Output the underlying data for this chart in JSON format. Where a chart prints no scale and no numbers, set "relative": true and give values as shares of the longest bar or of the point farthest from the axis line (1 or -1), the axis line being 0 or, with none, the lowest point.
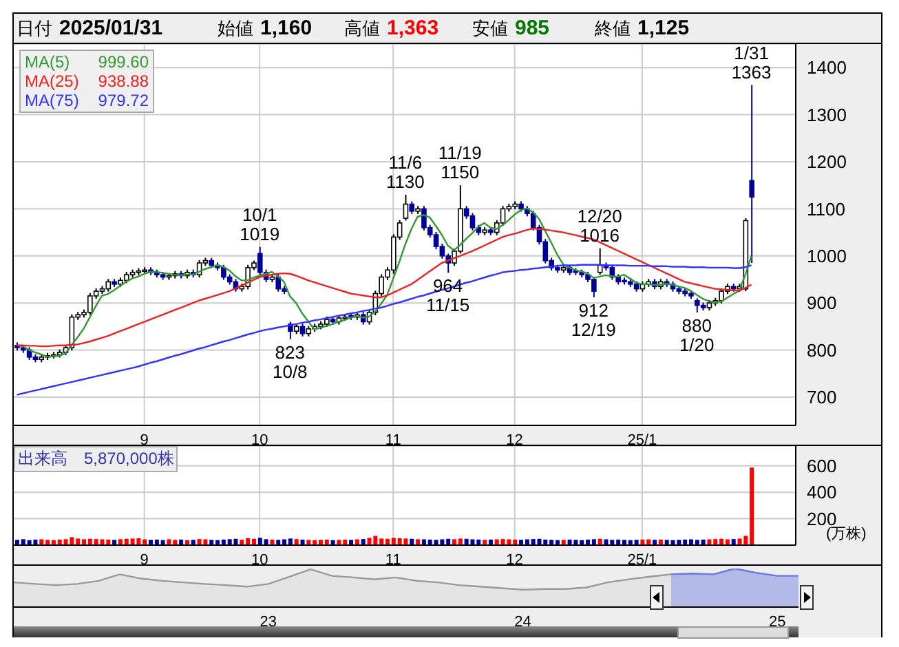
{
  "chart_data": [
    {
      "type": "candlestick",
      "colors": [
        "#000099",
        "#000099",
        "#000099",
        "#000099",
        "#ffffff",
        "#ffffff",
        "#ffffff",
        "#ffffff",
        "#ffffff",
        "#ffffff",
        "#ffffff",
        "#ffffff",
        "#ffffff",
        "#ffffff",
        "#ffffff",
        "#ffffff",
        "#000099",
        "#ffffff",
        "#ffffff",
        "#ffffff",
        "#ffffff",
        "#ffffff",
        "#000099",
        "#000099",
        "#000099",
        "#ffffff",
        "#ffffff",
        "#000099",
        "#ffffff",
        "#000099",
        "#ffffff",
        "#ffffff",
        "#000099",
        "#000099",
        "#000099",
        "#000099",
        "#000099",
        "#ffffff",
        "#ffffff",
        "#ffffff",
        "#000099",
        "#000099",
        "#ffffff",
        "#000099",
        "#000099",
        "#000099",
        "#ffffff",
        "#000099",
        "#ffffff",
        "#ffffff",
        "#ffffff",
        "#ffffff",
        "#000099",
        "#ffffff",
        "#ffffff",
        "#000099",
        "#ffffff",
        "#000099",
        "#ffffff",
        "#ffffff",
        "#ffffff",
        "#ffffff",
        "#ffffff",
        "#ffffff",
        "#ffffff",
        "#000099",
        "#ffffff",
        "#000099",
        "#000099",
        "#000099",
        "#000099",
        "#000099",
        "#ffffff",
        "#ffffff",
        "#000099",
        "#000099",
        "#000099",
        "#ffffff",
        "#000099",
        "#ffffff",
        "#ffffff",
        "#ffffff",
        "#ffffff",
        "#000099",
        "#000099",
        "#000099",
        "#000099",
        "#000099",
        "#000099",
        "#000099",
        "#ffffff",
        "#000099",
        "#000099",
        "#000099",
        "#000099",
        "#000099",
        "#ffffff",
        "#000099",
        "#000099",
        "#000099",
        "#000099",
        "#000099",
        "#000099",
        "#ffffff",
        "#ffffff",
        "#000099",
        "#ffffff",
        "#000099",
        "#000099",
        "#000099",
        "#000099",
        "#000099",
        "#000099",
        "#000099",
        "#ffffff",
        "#ffffff",
        "#ffffff",
        "#ffffff",
        "#000099",
        "#ffffff",
        "#ffffff",
        "#000099"
      ],
      "ylim": [
        640,
        1450
      ],
      "yticks": [
        700,
        800,
        900,
        1000,
        1100,
        1200,
        1300,
        1400
      ],
      "grid": true,
      "legend": "top left",
      "categories": [
        null,
        null,
        null,
        null,
        null,
        null,
        null,
        null,
        null,
        null,
        null,
        null,
        null,
        null,
        null,
        null,
        null,
        null,
        null,
        null,
        null,
        "9",
        null,
        null,
        null,
        null,
        null,
        null,
        null,
        null,
        null,
        null,
        null,
        null,
        null,
        null,
        null,
        null,
        null,
        null,
        "10",
        null,
        null,
        null,
        null,
        null,
        null,
        null,
        null,
        null,
        null,
        null,
        null,
        null,
        null,
        null,
        null,
        null,
        null,
        null,
        null,
        null,
        "11",
        null,
        null,
        null,
        null,
        null,
        null,
        null,
        null,
        null,
        null,
        null,
        null,
        null,
        null,
        null,
        null,
        null,
        null,
        null,
        "12",
        null,
        null,
        null,
        null,
        null,
        null,
        null,
        null,
        null,
        null,
        null,
        null,
        null,
        null,
        null,
        null,
        null,
        null,
        null,
        null,
        "25/1",
        null,
        null,
        null,
        null,
        null,
        null,
        null,
        null,
        null,
        null,
        null,
        null,
        null,
        null,
        null,
        null,
        null,
        null
      ],
      "ohlc": [
        [
          810,
          816,
          799,
          805
        ],
        [
          805,
          811,
          794,
          800
        ],
        [
          800,
          806,
          779,
          785
        ],
        [
          785,
          791,
          774,
          780
        ],
        [
          780,
          791,
          774,
          785
        ],
        [
          785,
          794,
          779,
          788
        ],
        [
          788,
          796,
          782,
          790
        ],
        [
          790,
          801,
          784,
          795
        ],
        [
          795,
          811,
          789,
          805
        ],
        [
          805,
          876,
          799,
          870
        ],
        [
          870,
          881,
          864,
          875
        ],
        [
          875,
          886,
          869,
          880
        ],
        [
          880,
          921,
          874,
          915
        ],
        [
          915,
          931,
          909,
          925
        ],
        [
          925,
          936,
          919,
          930
        ],
        [
          930,
          951,
          924,
          945
        ],
        [
          945,
          951,
          934,
          940
        ],
        [
          940,
          954,
          934,
          948
        ],
        [
          948,
          966,
          942,
          960
        ],
        [
          960,
          971,
          954,
          965
        ],
        [
          965,
          974,
          959,
          968
        ],
        [
          968,
          976,
          962,
          970
        ],
        [
          970,
          976,
          959,
          965
        ],
        [
          965,
          971,
          954,
          960
        ],
        [
          960,
          966,
          949,
          955
        ],
        [
          955,
          963,
          949,
          958
        ],
        [
          958,
          968,
          952,
          962
        ],
        [
          962,
          968,
          952,
          958
        ],
        [
          958,
          971,
          952,
          965
        ],
        [
          965,
          971,
          954,
          960
        ],
        [
          960,
          991,
          954,
          985
        ],
        [
          985,
          996,
          979,
          990
        ],
        [
          990,
          996,
          974,
          980
        ],
        [
          980,
          986,
          969,
          975
        ],
        [
          975,
          981,
          949,
          955
        ],
        [
          955,
          961,
          939,
          945
        ],
        [
          945,
          951,
          924,
          930
        ],
        [
          930,
          941,
          924,
          935
        ],
        [
          935,
          981,
          929,
          975
        ],
        [
          975,
          990,
          970,
          985
        ],
        [
          1005,
          1019,
          960,
          965
        ],
        [
          965,
          971,
          944,
          950
        ],
        [
          950,
          961,
          944,
          955
        ],
        [
          955,
          961,
          924,
          930
        ],
        [
          930,
          936,
          919,
          925
        ],
        [
          855,
          860,
          823,
          840
        ],
        [
          840,
          856,
          834,
          850
        ],
        [
          850,
          856,
          829,
          835
        ],
        [
          835,
          851,
          829,
          845
        ],
        [
          845,
          856,
          839,
          850
        ],
        [
          850,
          861,
          844,
          855
        ],
        [
          855,
          871,
          849,
          865
        ],
        [
          865,
          871,
          854,
          860
        ],
        [
          860,
          874,
          854,
          868
        ],
        [
          868,
          876,
          862,
          870
        ],
        [
          873,
          879,
          864,
          870
        ],
        [
          870,
          881,
          864,
          875
        ],
        [
          875,
          881,
          854,
          860
        ],
        [
          860,
          886,
          854,
          880
        ],
        [
          880,
          926,
          874,
          920
        ],
        [
          920,
          961,
          914,
          955
        ],
        [
          955,
          976,
          949,
          970
        ],
        [
          970,
          1046,
          962,
          1040
        ],
        [
          1040,
          1076,
          1034,
          1070
        ],
        [
          1080,
          1130,
          1075,
          1110
        ],
        [
          1110,
          1116,
          1089,
          1095
        ],
        [
          1095,
          1106,
          1089,
          1100
        ],
        [
          1100,
          1106,
          1054,
          1060
        ],
        [
          1060,
          1066,
          1039,
          1045
        ],
        [
          1045,
          1051,
          1014,
          1020
        ],
        [
          1020,
          1026,
          994,
          1000
        ],
        [
          1000,
          1005,
          964,
          985
        ],
        [
          985,
          1015,
          979,
          1010
        ],
        [
          1010,
          1150,
          1005,
          1100
        ],
        [
          1100,
          1106,
          1079,
          1085
        ],
        [
          1085,
          1091,
          1054,
          1060
        ],
        [
          1060,
          1066,
          1044,
          1050
        ],
        [
          1050,
          1061,
          1044,
          1055
        ],
        [
          1055,
          1061,
          1044,
          1050
        ],
        [
          1050,
          1076,
          1044,
          1070
        ],
        [
          1070,
          1106,
          1064,
          1100
        ],
        [
          1100,
          1111,
          1094,
          1105
        ],
        [
          1105,
          1116,
          1099,
          1110
        ],
        [
          1110,
          1116,
          1094,
          1100
        ],
        [
          1100,
          1106,
          1084,
          1090
        ],
        [
          1090,
          1096,
          1054,
          1060
        ],
        [
          1060,
          1066,
          1024,
          1030
        ],
        [
          1030,
          1036,
          984,
          990
        ],
        [
          990,
          996,
          969,
          975
        ],
        [
          975,
          981,
          964,
          970
        ],
        [
          970,
          981,
          964,
          975
        ],
        [
          975,
          981,
          959,
          965
        ],
        [
          968,
          974,
          959,
          965
        ],
        [
          965,
          971,
          954,
          960
        ],
        [
          960,
          966,
          944,
          950
        ],
        [
          950,
          955,
          912,
          925
        ],
        [
          965,
          1016,
          960,
          980
        ],
        [
          980,
          986,
          969,
          975
        ],
        [
          975,
          981,
          949,
          955
        ],
        [
          955,
          961,
          939,
          945
        ],
        [
          948,
          954,
          939,
          945
        ],
        [
          945,
          951,
          934,
          940
        ],
        [
          940,
          946,
          924,
          930
        ],
        [
          930,
          946,
          924,
          940
        ],
        [
          940,
          951,
          934,
          945
        ],
        [
          945,
          951,
          929,
          935
        ],
        [
          935,
          951,
          929,
          945
        ],
        [
          945,
          951,
          934,
          940
        ],
        [
          940,
          946,
          924,
          930
        ],
        [
          930,
          936,
          919,
          925
        ],
        [
          925,
          931,
          914,
          920
        ],
        [
          920,
          926,
          909,
          915
        ],
        [
          905,
          910,
          880,
          895
        ],
        [
          895,
          901,
          884,
          890
        ],
        [
          890,
          906,
          884,
          900
        ],
        [
          900,
          911,
          894,
          905
        ],
        [
          905,
          931,
          899,
          925
        ],
        [
          925,
          941,
          919,
          935
        ],
        [
          935,
          941,
          924,
          930
        ],
        [
          930,
          941,
          924,
          935
        ],
        [
          930,
          1080,
          925,
          1075
        ],
        [
          1160,
          1363,
          985,
          1125
        ]
      ],
      "series": [
        {
          "name": "MA(5)",
          "type": "line",
          "color": "#339933",
          "values": [
            810,
            808,
            800,
            795,
            791,
            786,
            786,
            788,
            793,
            810,
            827,
            845,
            869,
            893,
            915,
            919,
            927,
            936,
            945,
            952,
            956,
            962,
            966,
            966,
            964,
            962,
            960,
            959,
            960,
            961,
            966,
            972,
            976,
            980,
            977,
            969,
            957,
            948,
            948,
            954,
            958,
            962,
            966,
            957,
            945,
            914,
            900,
            878,
            861,
            844,
            847,
            851,
            855,
            860,
            864,
            869,
            872,
            869,
            871,
            881,
            898,
            917,
            952,
            987,
            1025,
            1057,
            1083,
            1087,
            1082,
            1064,
            1045,
            1022,
            1012,
            1023,
            1036,
            1048,
            1062,
            1070,
            1060,
            1057,
            1065,
            1076,
            1088,
            1097,
            1101,
            1093,
            1079,
            1054,
            1029,
            1003,
            982,
            975,
            970,
            967,
            963,
            953,
            956,
            959,
            957,
            956,
            960,
            952,
            943,
            940,
            940,
            938,
            939,
            941,
            939,
            935,
            932,
            926,
            917,
            909,
            904,
            901,
            903,
            911,
            919,
            926,
            960,
            1000
          ]
        },
        {
          "name": "MA(25)",
          "type": "line",
          "color": "#ee2222",
          "values": [
            810,
            810,
            809,
            809,
            808,
            808,
            809,
            810,
            810,
            811,
            812,
            815,
            818,
            822,
            826,
            830,
            835,
            840,
            845,
            850,
            855,
            860,
            865,
            870,
            875,
            880,
            885,
            890,
            895,
            900,
            905,
            909,
            913,
            917,
            921,
            925,
            931,
            937,
            943,
            949,
            955,
            958,
            960,
            962,
            963,
            962,
            958,
            953,
            948,
            944,
            940,
            936,
            932,
            928,
            924,
            920,
            918,
            916,
            914,
            912,
            912,
            916,
            922,
            928,
            934,
            940,
            949,
            958,
            967,
            976,
            985,
            990,
            995,
            1000,
            1005,
            1010,
            1016,
            1022,
            1028,
            1034,
            1040,
            1044,
            1047,
            1051,
            1055,
            1058,
            1057,
            1056,
            1054,
            1052,
            1050,
            1047,
            1044,
            1041,
            1038,
            1035,
            1029,
            1023,
            1017,
            1011,
            1005,
            999,
            993,
            987,
            981,
            975,
            969,
            963,
            957,
            951,
            945,
            942,
            939,
            936,
            933,
            930,
            929,
            928,
            927,
            926,
            932,
            939
          ]
        },
        {
          "name": "MA(75)",
          "type": "line",
          "color": "#3333ff",
          "values": [
            705,
            708,
            711,
            714,
            717,
            720,
            723,
            726,
            729,
            732,
            735,
            738,
            741,
            744,
            747,
            750,
            753,
            756,
            759,
            762,
            765,
            769,
            773,
            776,
            780,
            784,
            788,
            791,
            795,
            799,
            803,
            806,
            810,
            814,
            818,
            821,
            825,
            829,
            833,
            836,
            840,
            843,
            845,
            848,
            850,
            853,
            855,
            858,
            860,
            863,
            865,
            868,
            870,
            873,
            875,
            878,
            880,
            883,
            885,
            888,
            890,
            894,
            898,
            901,
            905,
            909,
            913,
            916,
            920,
            924,
            928,
            931,
            935,
            939,
            943,
            946,
            950,
            954,
            958,
            961,
            965,
            967,
            968,
            970,
            971,
            973,
            974,
            976,
            977,
            979,
            980,
            980,
            980,
            981,
            981,
            981,
            981,
            980,
            980,
            980,
            980,
            979,
            979,
            979,
            979,
            978,
            978,
            978,
            977,
            977,
            977,
            976,
            976,
            976,
            975,
            975,
            975,
            975,
            974,
            974,
            976,
            980
          ]
        }
      ],
      "annotations": [
        "日付 2025/01/31",
        "始値 1,160",
        "高値 1,363",
        "安値 985",
        "終値 1,125",
        "999.60",
        "938.88",
        "979.72",
        {
          "text": "10/1\n1019",
          "y": 1019
        },
        {
          "text": "823\n10/8",
          "y": 823
        },
        {
          "text": "11/6\n1130",
          "y": 1130
        },
        {
          "text": "964\n11/15",
          "y": 964
        },
        {
          "text": "11/19\n1150",
          "y": 1150
        },
        {
          "text": "912\n12/19",
          "y": 912
        },
        {
          "text": "12/20\n1016",
          "y": 1016
        },
        {
          "text": "880\n1/20",
          "y": 880
        },
        {
          "text": "1/31\n1363",
          "y": 1363
        }
      ]
    },
    {
      "type": "bar",
      "title": "出来高　5,870,000株",
      "ylabel": "(万株)",
      "ylim": [
        0,
        750
      ],
      "yticks": [
        200,
        400,
        600
      ],
      "grid": true,
      "categories": [
        null,
        null,
        null,
        null,
        null,
        null,
        null,
        null,
        null,
        null,
        null,
        null,
        null,
        null,
        null,
        null,
        null,
        null,
        null,
        null,
        null,
        "9",
        null,
        null,
        null,
        null,
        null,
        null,
        null,
        null,
        null,
        null,
        null,
        null,
        null,
        null,
        null,
        null,
        null,
        null,
        "10",
        null,
        null,
        null,
        null,
        null,
        null,
        null,
        null,
        null,
        null,
        null,
        null,
        null,
        null,
        null,
        null,
        null,
        null,
        null,
        null,
        null,
        "11",
        null,
        null,
        null,
        null,
        null,
        null,
        null,
        null,
        null,
        null,
        null,
        null,
        null,
        null,
        null,
        null,
        null,
        null,
        null,
        "12",
        null,
        null,
        null,
        null,
        null,
        null,
        null,
        null,
        null,
        null,
        null,
        null,
        null,
        null,
        null,
        null,
        null,
        null,
        null,
        null,
        "25/1",
        null,
        null,
        null,
        null,
        null,
        null,
        null,
        null,
        null,
        null,
        null,
        null,
        null,
        null,
        null,
        null,
        null,
        null
      ],
      "values": [
        40,
        45,
        38,
        42,
        44,
        40,
        38,
        42,
        45,
        60,
        50,
        45,
        48,
        46,
        44,
        42,
        40,
        45,
        48,
        50,
        52,
        44,
        40,
        42,
        38,
        45,
        40,
        42,
        38,
        40,
        46,
        44,
        40,
        38,
        42,
        45,
        48,
        40,
        52,
        48,
        55,
        45,
        42,
        40,
        44,
        50,
        46,
        42,
        40,
        38,
        40,
        42,
        38,
        40,
        42,
        40,
        44,
        46,
        55,
        70,
        50,
        48,
        55,
        52,
        50,
        48,
        45,
        44,
        42,
        40,
        44,
        48,
        45,
        50,
        48,
        44,
        42,
        40,
        42,
        44,
        46,
        44,
        42,
        40,
        44,
        46,
        48,
        42,
        40,
        38,
        40,
        42,
        40,
        38,
        42,
        45,
        48,
        44,
        40,
        42,
        40,
        38,
        40,
        42,
        44,
        40,
        42,
        40,
        38,
        40,
        42,
        44,
        40,
        42,
        44,
        46,
        48,
        44,
        46,
        50,
        70,
        587
      ],
      "colors": [
        "#000099",
        "#000099",
        "#000099",
        "#000099",
        "#ff0000",
        "#ff0000",
        "#ff0000",
        "#ff0000",
        "#ff0000",
        "#ff0000",
        "#ff0000",
        "#ff0000",
        "#ff0000",
        "#ff0000",
        "#ff0000",
        "#ff0000",
        "#000099",
        "#ff0000",
        "#ff0000",
        "#ff0000",
        "#ff0000",
        "#ff0000",
        "#000099",
        "#000099",
        "#000099",
        "#ff0000",
        "#ff0000",
        "#000099",
        "#ff0000",
        "#000099",
        "#ff0000",
        "#ff0000",
        "#000099",
        "#000099",
        "#000099",
        "#000099",
        "#000099",
        "#ff0000",
        "#ff0000",
        "#ff0000",
        "#000099",
        "#000099",
        "#ff0000",
        "#000099",
        "#000099",
        "#000099",
        "#ff0000",
        "#000099",
        "#ff0000",
        "#ff0000",
        "#ff0000",
        "#ff0000",
        "#000099",
        "#ff0000",
        "#ff0000",
        "#000099",
        "#ff0000",
        "#000099",
        "#ff0000",
        "#ff0000",
        "#ff0000",
        "#ff0000",
        "#ff0000",
        "#ff0000",
        "#ff0000",
        "#000099",
        "#ff0000",
        "#000099",
        "#000099",
        "#000099",
        "#000099",
        "#000099",
        "#ff0000",
        "#ff0000",
        "#000099",
        "#000099",
        "#000099",
        "#ff0000",
        "#000099",
        "#ff0000",
        "#ff0000",
        "#ff0000",
        "#ff0000",
        "#000099",
        "#000099",
        "#000099",
        "#000099",
        "#000099",
        "#000099",
        "#000099",
        "#ff0000",
        "#000099",
        "#000099",
        "#000099",
        "#000099",
        "#000099",
        "#ff0000",
        "#000099",
        "#000099",
        "#000099",
        "#000099",
        "#000099",
        "#000099",
        "#ff0000",
        "#ff0000",
        "#000099",
        "#ff0000",
        "#000099",
        "#000099",
        "#000099",
        "#000099",
        "#000099",
        "#000099",
        "#000099",
        "#ff0000",
        "#ff0000",
        "#ff0000",
        "#ff0000",
        "#000099",
        "#ff0000",
        "#ff0000",
        "#ff0000"
      ]
    },
    {
      "type": "area",
      "relative": true,
      "categories": [
        null,
        null,
        null,
        null,
        null,
        null,
        null,
        null,
        null,
        null,
        null,
        null,
        "23",
        null,
        null,
        null,
        null,
        null,
        null,
        null,
        null,
        null,
        null,
        null,
        "24",
        null,
        null,
        null,
        null,
        null,
        null,
        null,
        null,
        null,
        null,
        null,
        "25",
        null
      ],
      "series": [
        {
          "color": "#999999",
          "values": [
            0.64,
            0.6,
            0.57,
            0.6,
            0.68,
            0.85,
            0.74,
            0.68,
            0.64,
            0.6,
            0.57,
            0.53,
            0.6,
            0.79,
            0.98,
            0.81,
            0.77,
            0.72,
            0.77,
            0.68,
            0.64,
            0.57,
            0.53,
            0.49,
            0.45,
            0.47,
            0.47,
            0.51,
            0.64,
            0.72,
            0.79,
            0.85,
            null,
            null,
            null,
            null,
            null,
            null
          ]
        },
        {
          "color": "#6677dd",
          "values": [
            null,
            null,
            null,
            null,
            null,
            null,
            null,
            null,
            null,
            null,
            null,
            null,
            null,
            null,
            null,
            null,
            null,
            null,
            null,
            null,
            null,
            null,
            null,
            null,
            null,
            null,
            null,
            null,
            null,
            null,
            null,
            0.85,
            0.87,
            0.85,
            1.0,
            0.89,
            0.81,
            0.81
          ]
        }
      ]
    }
  ]
}
